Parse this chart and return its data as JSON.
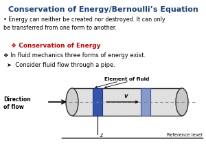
{
  "title": "Conservation of Energy/Bernoulli’s Equation",
  "title_color": "#1B3F78",
  "bg_color": "#F0F0F0",
  "bullet1_prefix": "• ",
  "bullet1": "Energy can neither be created nor destroyed. It can only\nbe transferred from one form to another.",
  "sub_heading": "❖ Conservation of Energy",
  "sub_heading_color": "#CC0000",
  "bullet2": "❖ In fluid mechanics three forms of energy exist.",
  "bullet3": "➤  Consider fluid flow through a pipe.",
  "diagram_label_top": "Element of fluid",
  "diagram_label_v": "v",
  "diagram_label_z": "z",
  "diagram_label_ref": "Reference level",
  "direction_label": "Direction\nof flow",
  "pipe_color": "#303030",
  "fluid_color_left": "#3355AA",
  "fluid_color_right": "#8899CC",
  "dashed_line_color": "#808080",
  "content_bg": "#FFFFFF"
}
